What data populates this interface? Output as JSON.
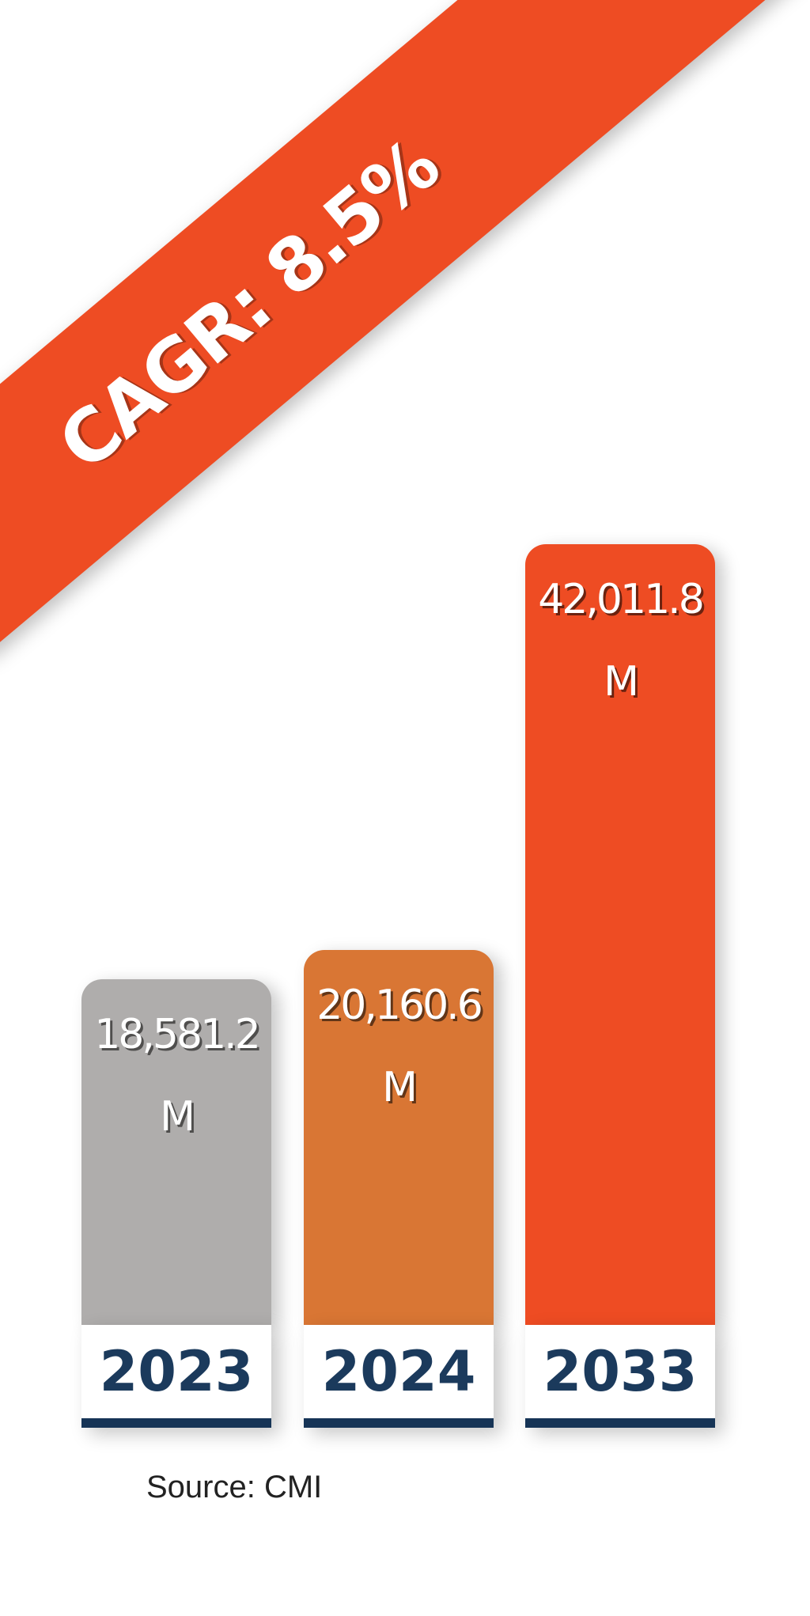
{
  "chart_data": {
    "type": "bar",
    "categories": [
      "2023",
      "2024",
      "2033"
    ],
    "values": [
      18581.2,
      20160.6,
      42011.8
    ],
    "value_labels": [
      "18,581.2 M",
      "20,160.6M",
      "42,011.8 M"
    ],
    "bar_colors": [
      "#afadac",
      "#d97634",
      "#ee4c23"
    ],
    "ylim": [
      0,
      50000
    ],
    "grid": false,
    "legend": "none",
    "annotation": "CAGR: 8.5%",
    "source": "Source: CMI"
  },
  "colors": {
    "ribbon": "#ee4c23",
    "year_text": "#1b3a5c",
    "year_underline": "#163456"
  }
}
